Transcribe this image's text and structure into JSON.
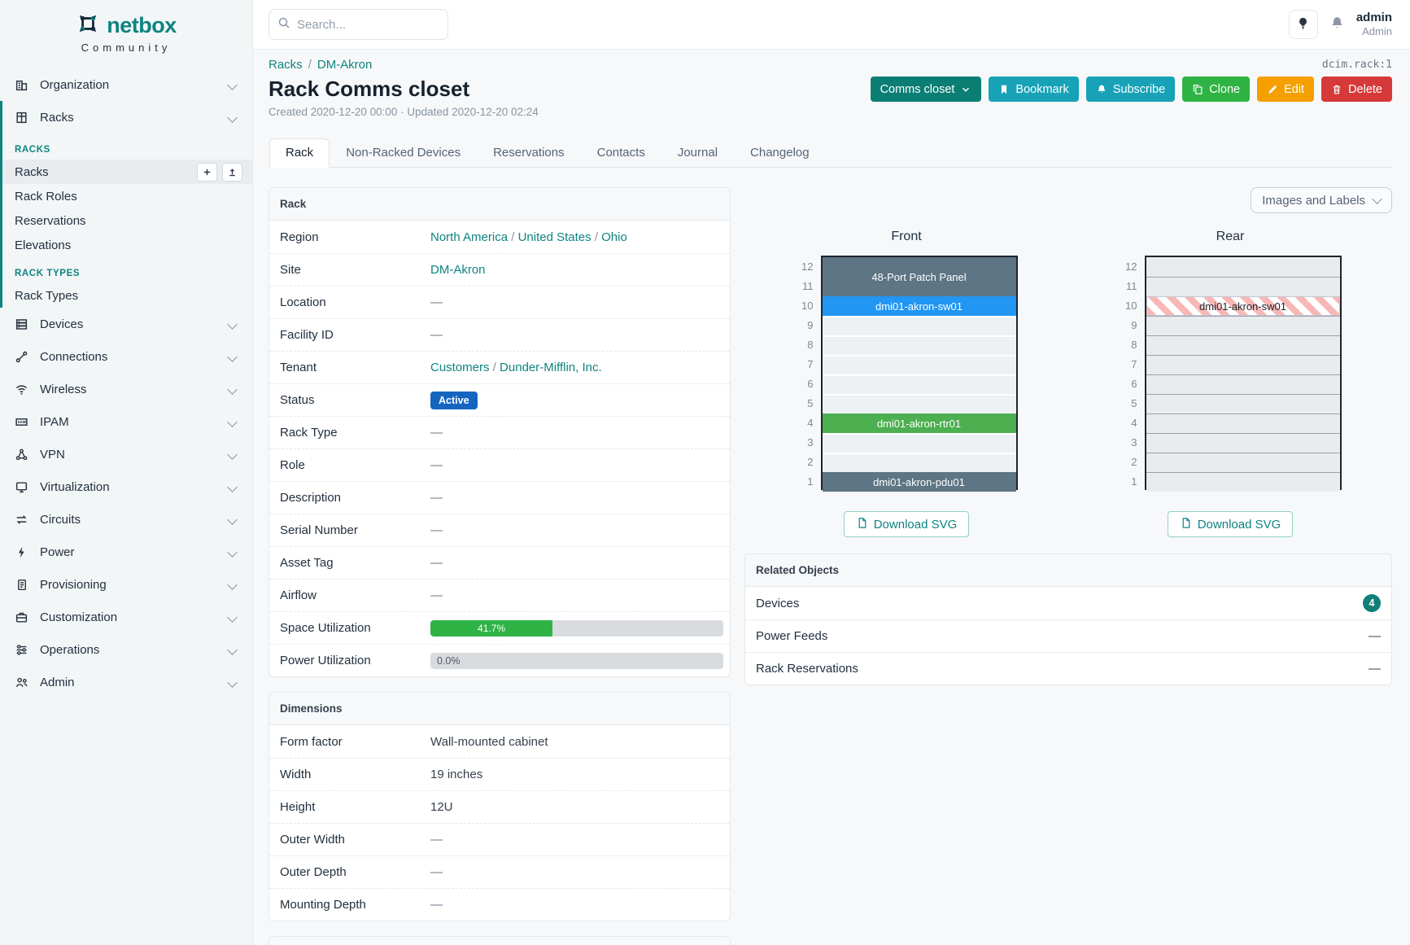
{
  "colors": {
    "accent_teal": "#0e8480",
    "sidebar_active_bar": "#0e8480",
    "status_active_badge": "#1565c0",
    "progress_green": "#2fb344",
    "button_primary_dark_teal": "#0b7e74",
    "button_cyan": "#17a2b8",
    "button_green": "#2fb344",
    "button_orange": "#f59f00",
    "button_red": "#d63939",
    "device_slate": "#5d7584",
    "device_blue": "#2196f3",
    "device_green": "#4caf50",
    "rear_stripe_pink": "#f8b7b7",
    "count_badge_teal": "#0f8078"
  },
  "sidebar": {
    "logo_text": "netbox",
    "logo_subtitle": "Community",
    "groups": [
      {
        "label": "Organization",
        "icon": "organization-icon"
      },
      {
        "label": "Racks",
        "icon": "racks-icon",
        "expanded": true,
        "children": [
          {
            "type": "header",
            "label": "RACKS"
          },
          {
            "type": "link",
            "label": "Racks",
            "active": true,
            "actions": [
              "add",
              "import"
            ]
          },
          {
            "type": "link",
            "label": "Rack Roles"
          },
          {
            "type": "link",
            "label": "Reservations"
          },
          {
            "type": "link",
            "label": "Elevations"
          },
          {
            "type": "header",
            "label": "RACK TYPES"
          },
          {
            "type": "link",
            "label": "Rack Types"
          }
        ]
      },
      {
        "label": "Devices",
        "icon": "devices-icon"
      },
      {
        "label": "Connections",
        "icon": "connections-icon"
      },
      {
        "label": "Wireless",
        "icon": "wireless-icon"
      },
      {
        "label": "IPAM",
        "icon": "ipam-icon"
      },
      {
        "label": "VPN",
        "icon": "vpn-icon"
      },
      {
        "label": "Virtualization",
        "icon": "virtualization-icon"
      },
      {
        "label": "Circuits",
        "icon": "circuits-icon"
      },
      {
        "label": "Power",
        "icon": "power-icon"
      },
      {
        "label": "Provisioning",
        "icon": "provisioning-icon"
      },
      {
        "label": "Customization",
        "icon": "customization-icon"
      },
      {
        "label": "Operations",
        "icon": "operations-icon"
      },
      {
        "label": "Admin",
        "icon": "admin-icon"
      }
    ]
  },
  "topbar": {
    "search_placeholder": "Search...",
    "user_name": "admin",
    "user_role": "Admin"
  },
  "object_id": "dcim.rack:1",
  "breadcrumb": [
    "Racks",
    "DM-Akron"
  ],
  "page": {
    "title": "Rack Comms closet",
    "meta": "Created 2020-12-20 00:00 · Updated 2020-12-20 02:24"
  },
  "actions": [
    {
      "label": "Comms closet",
      "style": "primary",
      "icon": "caret-down-icon",
      "icon_after": true
    },
    {
      "label": "Bookmark",
      "style": "cyan",
      "icon": "bookmark-icon"
    },
    {
      "label": "Subscribe",
      "style": "cyan",
      "icon": "bell-icon"
    },
    {
      "label": "Clone",
      "style": "green",
      "icon": "copy-icon"
    },
    {
      "label": "Edit",
      "style": "orange",
      "icon": "pencil-icon"
    },
    {
      "label": "Delete",
      "style": "red",
      "icon": "trash-icon"
    }
  ],
  "tabs": [
    {
      "label": "Rack",
      "active": true
    },
    {
      "label": "Non-Racked Devices"
    },
    {
      "label": "Reservations"
    },
    {
      "label": "Contacts"
    },
    {
      "label": "Journal"
    },
    {
      "label": "Changelog"
    }
  ],
  "rack_panel": {
    "title": "Rack",
    "rows": [
      {
        "label": "Region",
        "type": "links",
        "parts": [
          "North America",
          "United States",
          "Ohio"
        ]
      },
      {
        "label": "Site",
        "type": "links",
        "parts": [
          "DM-Akron"
        ]
      },
      {
        "label": "Location",
        "type": "dash",
        "text": "—"
      },
      {
        "label": "Facility ID",
        "type": "dash",
        "text": "—"
      },
      {
        "label": "Tenant",
        "type": "links",
        "parts": [
          "Customers",
          "Dunder-Mifflin, Inc."
        ]
      },
      {
        "label": "Status",
        "type": "badge",
        "text": "Active"
      },
      {
        "label": "Rack Type",
        "type": "dash",
        "text": "—"
      },
      {
        "label": "Role",
        "type": "dash",
        "text": "—"
      },
      {
        "label": "Description",
        "type": "dash",
        "text": "—"
      },
      {
        "label": "Serial Number",
        "type": "dash",
        "text": "—"
      },
      {
        "label": "Asset Tag",
        "type": "dash",
        "text": "—"
      },
      {
        "label": "Airflow",
        "type": "dash",
        "text": "—"
      },
      {
        "label": "Space Utilization",
        "type": "progress",
        "value": 41.7,
        "text": "41.7%"
      },
      {
        "label": "Power Utilization",
        "type": "progress",
        "value": 0,
        "text": "0.0%"
      }
    ]
  },
  "dimensions_panel": {
    "title": "Dimensions",
    "rows": [
      {
        "label": "Form factor",
        "type": "text",
        "text": "Wall-mounted cabinet"
      },
      {
        "label": "Width",
        "type": "text",
        "text": "19 inches"
      },
      {
        "label": "Height",
        "type": "text",
        "text": "12U"
      },
      {
        "label": "Outer Width",
        "type": "dash",
        "text": "—"
      },
      {
        "label": "Outer Depth",
        "type": "dash",
        "text": "—"
      },
      {
        "label": "Mounting Depth",
        "type": "dash",
        "text": "—"
      }
    ]
  },
  "elevations": {
    "toggle_label": "Images and Labels",
    "download_label": "Download SVG",
    "unit_numbers": [
      "12",
      "11",
      "10",
      "9",
      "8",
      "7",
      "6",
      "5",
      "4",
      "3",
      "2",
      "1"
    ],
    "front": {
      "title": "Front",
      "devices": [
        {
          "name": "48-Port Patch Panel",
          "top_unit": 12,
          "u_height": 2,
          "color": "#5d7584"
        },
        {
          "name": "dmi01-akron-sw01",
          "top_unit": 10,
          "u_height": 1,
          "color": "#2196f3"
        },
        {
          "name": "dmi01-akron-rtr01",
          "top_unit": 4,
          "u_height": 1,
          "color": "#4caf50"
        },
        {
          "name": "dmi01-akron-pdu01",
          "top_unit": 1,
          "u_height": 1,
          "color": "#5d7584"
        }
      ]
    },
    "rear": {
      "title": "Rear",
      "devices": [
        {
          "name": "dmi01-akron-sw01",
          "top_unit": 10,
          "u_height": 1,
          "striped": true
        }
      ]
    }
  },
  "related_panel": {
    "title": "Related Objects",
    "rows": [
      {
        "label": "Devices",
        "count": "4"
      },
      {
        "label": "Power Feeds",
        "dash": "—"
      },
      {
        "label": "Rack Reservations",
        "dash": "—"
      }
    ]
  }
}
